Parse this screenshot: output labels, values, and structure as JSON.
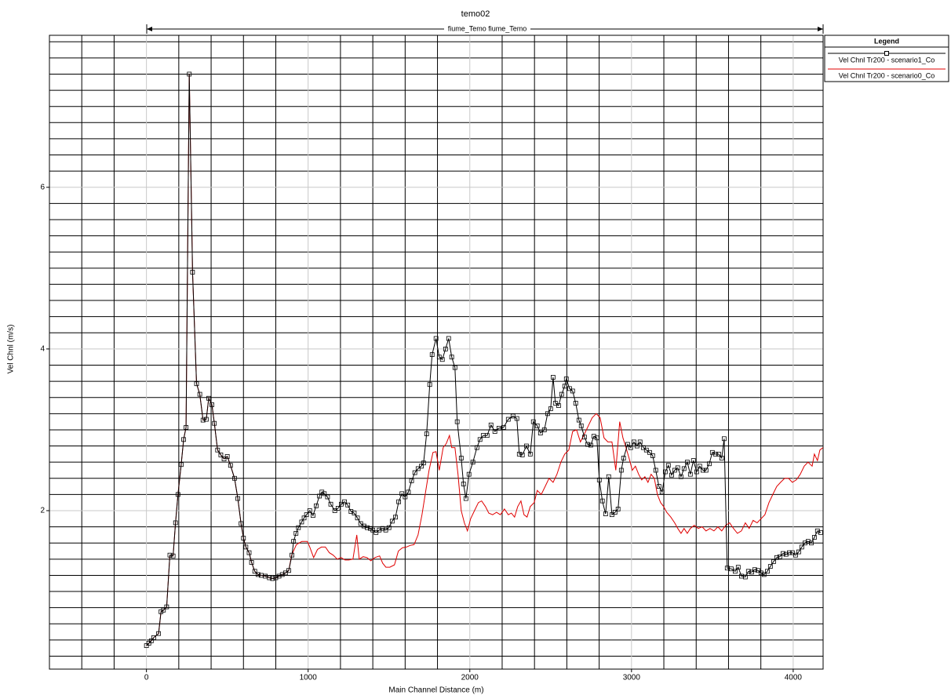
{
  "chart_data": {
    "type": "line",
    "title": "temo02",
    "annotation": "fiume_Temo fiume_Temo",
    "x_label": "Main Channel Distance (m)",
    "y_label": "Vel Chnl (m/s)",
    "legend_title": "Legend",
    "legend_position": "right",
    "grid": true,
    "xlim": [
      -600,
      4185
    ],
    "ylim": [
      0.04,
      7.88
    ],
    "xticks": [
      0,
      1000,
      2000,
      3000,
      4000
    ],
    "yticks": [
      2,
      4,
      6
    ],
    "x_minor_ticks": [
      -400,
      -200,
      200,
      400,
      600,
      800,
      1200,
      1400,
      1600,
      1800,
      2200,
      2400,
      2600,
      2800,
      3200,
      3400,
      3600,
      3800
    ],
    "y_minor_ticks": [
      0.2,
      0.4,
      0.6,
      0.8,
      1.0,
      1.2,
      1.4,
      1.6,
      1.8,
      2.2,
      2.4,
      2.6,
      2.8,
      3.0,
      3.2,
      3.4,
      3.6,
      3.8,
      4.2,
      4.4,
      4.6,
      4.8,
      5.0,
      5.2,
      5.4,
      5.6,
      5.8,
      6.2,
      6.4,
      6.6,
      6.8,
      7.0,
      7.2,
      7.4,
      7.6,
      7.8
    ],
    "series": [
      {
        "name": "Vel Chnl Tr200 - scenario1_Co",
        "color": "#000000",
        "marker": "square",
        "x": [
          0,
          15,
          30,
          45,
          75,
          90,
          105,
          125,
          145,
          165,
          180,
          195,
          215,
          230,
          245,
          265,
          285,
          310,
          330,
          350,
          370,
          385,
          405,
          420,
          440,
          460,
          480,
          500,
          520,
          545,
          565,
          585,
          600,
          615,
          635,
          650,
          670,
          690,
          710,
          735,
          760,
          780,
          800,
          820,
          840,
          860,
          880,
          900,
          910,
          925,
          940,
          960,
          975,
          990,
          1010,
          1030,
          1050,
          1070,
          1085,
          1100,
          1120,
          1140,
          1165,
          1185,
          1205,
          1225,
          1245,
          1265,
          1285,
          1305,
          1325,
          1345,
          1365,
          1385,
          1400,
          1420,
          1440,
          1460,
          1480,
          1500,
          1520,
          1540,
          1560,
          1580,
          1600,
          1620,
          1640,
          1660,
          1680,
          1700,
          1714,
          1733,
          1752,
          1767,
          1791,
          1811,
          1830,
          1850,
          1869,
          1888,
          1908,
          1922,
          1947,
          1961,
          1976,
          1995,
          2019,
          2044,
          2063,
          2083,
          2107,
          2131,
          2155,
          2180,
          2209,
          2238,
          2267,
          2291,
          2306,
          2325,
          2350,
          2374,
          2393,
          2417,
          2437,
          2461,
          2481,
          2500,
          2515,
          2529,
          2549,
          2568,
          2587,
          2597,
          2617,
          2636,
          2655,
          2675,
          2689,
          2709,
          2728,
          2748,
          2767,
          2786,
          2801,
          2820,
          2840,
          2859,
          2879,
          2898,
          2917,
          2937,
          2951,
          2976,
          2995,
          3015,
          3034,
          3053,
          3073,
          3092,
          3112,
          3131,
          3150,
          3170,
          3189,
          3209,
          3228,
          3248,
          3267,
          3286,
          3306,
          3325,
          3345,
          3364,
          3383,
          3403,
          3422,
          3442,
          3461,
          3481,
          3500,
          3519,
          3539,
          3558,
          3573,
          3592,
          3617,
          3641,
          3660,
          3680,
          3704,
          3723,
          3743,
          3762,
          3782,
          3801,
          3820,
          3840,
          3859,
          3879,
          3898,
          3917,
          3937,
          3956,
          3976,
          3995,
          4015,
          4034,
          4053,
          4073,
          4092,
          4112,
          4131,
          4150,
          4170
        ],
        "values": [
          0.33,
          0.36,
          0.39,
          0.43,
          0.48,
          0.75,
          0.77,
          0.81,
          1.45,
          1.44,
          1.85,
          2.2,
          2.57,
          2.88,
          3.03,
          7.4,
          4.95,
          3.57,
          3.44,
          3.12,
          3.13,
          3.39,
          3.31,
          3.08,
          2.75,
          2.69,
          2.64,
          2.67,
          2.56,
          2.4,
          2.15,
          1.84,
          1.66,
          1.55,
          1.48,
          1.36,
          1.25,
          1.21,
          1.2,
          1.19,
          1.17,
          1.16,
          1.17,
          1.19,
          1.21,
          1.23,
          1.26,
          1.45,
          1.62,
          1.72,
          1.79,
          1.86,
          1.91,
          1.95,
          2.0,
          1.94,
          2.06,
          2.18,
          2.23,
          2.21,
          2.17,
          2.08,
          2.0,
          2.03,
          2.08,
          2.11,
          2.07,
          1.99,
          1.97,
          1.91,
          1.84,
          1.81,
          1.79,
          1.78,
          1.76,
          1.73,
          1.76,
          1.78,
          1.76,
          1.79,
          1.87,
          1.92,
          2.11,
          2.21,
          2.17,
          2.23,
          2.37,
          2.47,
          2.52,
          2.55,
          2.59,
          2.95,
          3.56,
          3.93,
          4.13,
          3.9,
          3.87,
          4.0,
          4.13,
          3.9,
          3.77,
          3.1,
          2.65,
          2.33,
          2.15,
          2.45,
          2.6,
          2.78,
          2.88,
          2.93,
          2.93,
          3.06,
          2.98,
          3.02,
          3.03,
          3.13,
          3.17,
          3.14,
          2.7,
          2.69,
          2.8,
          2.7,
          3.1,
          3.05,
          2.96,
          3.0,
          3.2,
          3.26,
          3.65,
          3.33,
          3.3,
          3.44,
          3.54,
          3.63,
          3.51,
          3.48,
          3.33,
          3.12,
          3.05,
          2.91,
          2.82,
          2.81,
          2.92,
          2.9,
          2.38,
          2.12,
          1.96,
          2.42,
          1.95,
          1.98,
          2.02,
          2.5,
          2.65,
          2.82,
          2.78,
          2.85,
          2.8,
          2.85,
          2.78,
          2.75,
          2.72,
          2.68,
          2.5,
          2.3,
          2.23,
          2.48,
          2.56,
          2.44,
          2.5,
          2.53,
          2.42,
          2.52,
          2.6,
          2.45,
          2.62,
          2.48,
          2.55,
          2.5,
          2.5,
          2.58,
          2.72,
          2.7,
          2.7,
          2.65,
          2.89,
          1.29,
          1.28,
          1.25,
          1.3,
          1.19,
          1.18,
          1.25,
          1.24,
          1.27,
          1.26,
          1.23,
          1.21,
          1.25,
          1.31,
          1.37,
          1.42,
          1.43,
          1.47,
          1.46,
          1.48,
          1.48,
          1.45,
          1.49,
          1.55,
          1.6,
          1.62,
          1.6,
          1.67,
          1.75,
          1.73
        ]
      },
      {
        "name": "Vel Chnl Tr200 - scenario0_Co",
        "color": "#e00000",
        "x": [
          0,
          15,
          30,
          45,
          75,
          90,
          105,
          125,
          145,
          165,
          180,
          195,
          215,
          230,
          245,
          265,
          285,
          310,
          330,
          350,
          370,
          385,
          405,
          420,
          440,
          460,
          480,
          500,
          520,
          545,
          565,
          585,
          600,
          615,
          635,
          650,
          670,
          690,
          710,
          735,
          760,
          780,
          800,
          820,
          840,
          860,
          880,
          898,
          927,
          961,
          995,
          1010,
          1034,
          1058,
          1082,
          1107,
          1131,
          1155,
          1180,
          1204,
          1228,
          1252,
          1277,
          1301,
          1316,
          1340,
          1364,
          1388,
          1413,
          1442,
          1461,
          1481,
          1505,
          1534,
          1558,
          1583,
          1607,
          1631,
          1655,
          1680,
          1704,
          1728,
          1748,
          1772,
          1791,
          1811,
          1835,
          1854,
          1874,
          1888,
          1908,
          1927,
          1947,
          1966,
          1985,
          2005,
          2029,
          2053,
          2073,
          2097,
          2117,
          2141,
          2165,
          2189,
          2214,
          2238,
          2257,
          2277,
          2296,
          2316,
          2335,
          2354,
          2374,
          2398,
          2417,
          2442,
          2466,
          2490,
          2515,
          2539,
          2563,
          2587,
          2612,
          2636,
          2660,
          2684,
          2709,
          2733,
          2757,
          2782,
          2806,
          2830,
          2854,
          2879,
          2903,
          2927,
          2947,
          2966,
          2985,
          3005,
          3024,
          3044,
          3063,
          3083,
          3102,
          3121,
          3141,
          3160,
          3180,
          3199,
          3218,
          3243,
          3267,
          3286,
          3306,
          3325,
          3345,
          3364,
          3388,
          3413,
          3437,
          3461,
          3485,
          3510,
          3534,
          3558,
          3583,
          3607,
          3631,
          3655,
          3680,
          3704,
          3728,
          3752,
          3777,
          3801,
          3825,
          3850,
          3874,
          3898,
          3922,
          3947,
          3971,
          3995,
          4019,
          4044,
          4068,
          4092,
          4117,
          4131,
          4150,
          4165,
          4184
        ],
        "values": [
          0.33,
          0.36,
          0.39,
          0.43,
          0.48,
          0.75,
          0.77,
          0.81,
          1.45,
          1.44,
          1.85,
          2.2,
          2.57,
          2.88,
          3.03,
          7.4,
          4.95,
          3.57,
          3.44,
          3.12,
          3.13,
          3.39,
          3.31,
          3.08,
          2.75,
          2.69,
          2.64,
          2.67,
          2.56,
          2.4,
          2.15,
          1.84,
          1.66,
          1.55,
          1.48,
          1.36,
          1.25,
          1.21,
          1.2,
          1.19,
          1.17,
          1.16,
          1.17,
          1.19,
          1.21,
          1.23,
          1.26,
          1.45,
          1.58,
          1.62,
          1.62,
          1.55,
          1.42,
          1.52,
          1.55,
          1.55,
          1.48,
          1.45,
          1.4,
          1.42,
          1.39,
          1.39,
          1.4,
          1.7,
          1.4,
          1.43,
          1.42,
          1.38,
          1.42,
          1.44,
          1.35,
          1.3,
          1.3,
          1.33,
          1.5,
          1.54,
          1.55,
          1.57,
          1.58,
          1.7,
          1.95,
          2.25,
          2.5,
          2.72,
          2.73,
          2.5,
          2.78,
          2.83,
          2.93,
          2.78,
          2.78,
          2.45,
          2.0,
          1.85,
          1.75,
          1.9,
          2.0,
          2.1,
          2.12,
          2.05,
          1.97,
          1.95,
          1.98,
          1.95,
          2.02,
          1.95,
          1.97,
          1.92,
          2.05,
          2.12,
          1.95,
          1.92,
          2.05,
          2.1,
          2.25,
          2.2,
          2.3,
          2.4,
          2.35,
          2.45,
          2.6,
          2.7,
          2.75,
          2.98,
          3.0,
          2.85,
          2.95,
          3.05,
          3.15,
          3.2,
          3.15,
          2.9,
          2.85,
          2.85,
          2.5,
          3.1,
          2.9,
          2.78,
          2.65,
          2.5,
          2.55,
          2.45,
          2.38,
          2.42,
          2.35,
          2.45,
          2.4,
          2.2,
          2.1,
          2.05,
          1.98,
          1.92,
          1.85,
          1.78,
          1.72,
          1.78,
          1.72,
          1.78,
          1.82,
          1.78,
          1.8,
          1.75,
          1.78,
          1.75,
          1.8,
          1.75,
          1.82,
          1.85,
          1.78,
          1.72,
          1.75,
          1.85,
          1.78,
          1.88,
          1.85,
          1.9,
          1.95,
          2.1,
          2.2,
          2.3,
          2.35,
          2.4,
          2.4,
          2.35,
          2.38,
          2.45,
          2.55,
          2.6,
          2.55,
          2.7,
          2.62,
          2.75,
          2.78
        ]
      }
    ]
  }
}
